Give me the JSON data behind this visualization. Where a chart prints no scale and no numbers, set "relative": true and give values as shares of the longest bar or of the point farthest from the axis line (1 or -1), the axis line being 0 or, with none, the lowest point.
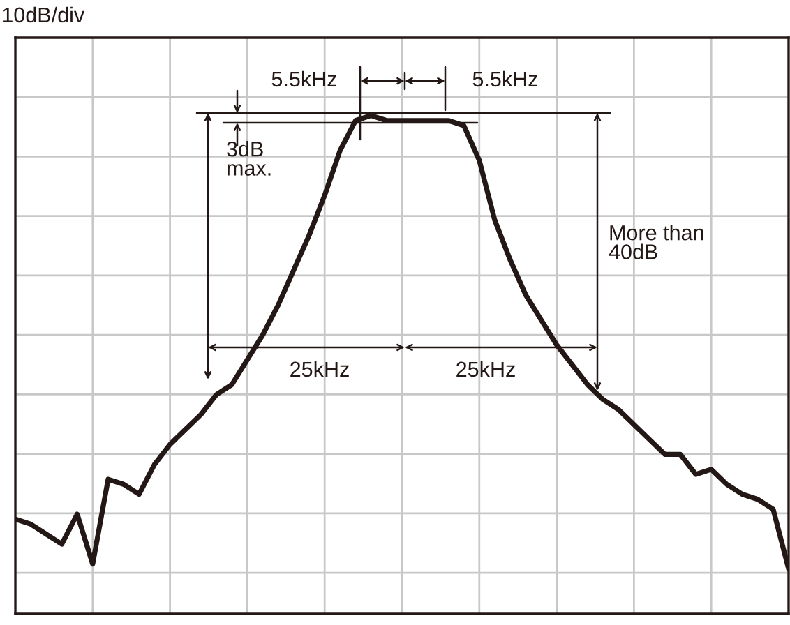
{
  "chart_data": {
    "type": "line",
    "relative": true,
    "grid": true,
    "tick_labels": false,
    "categories": [
      null,
      null,
      null,
      null,
      null,
      null,
      null,
      null,
      null,
      null,
      null,
      null,
      null,
      null,
      null,
      null,
      null,
      null,
      null,
      null,
      null,
      null,
      null,
      null,
      null,
      null,
      null,
      null,
      null,
      null,
      null,
      null,
      null,
      null,
      null,
      null,
      null,
      null,
      null,
      null,
      null,
      null,
      null,
      null,
      null,
      null,
      null,
      null,
      null,
      null,
      null
    ],
    "series": [
      {
        "color": "#231815",
        "values": [
          0.19,
          0.18,
          0.16,
          0.14,
          0.2,
          0.1,
          0.27,
          0.26,
          0.24,
          0.3,
          0.34,
          0.37,
          0.4,
          0.44,
          0.46,
          0.51,
          0.56,
          0.62,
          0.69,
          0.76,
          0.84,
          0.93,
          0.99,
          1.0,
          0.99,
          0.99,
          0.99,
          0.99,
          0.99,
          0.98,
          0.91,
          0.79,
          0.71,
          0.64,
          0.59,
          0.54,
          0.5,
          0.46,
          0.43,
          0.41,
          0.38,
          0.35,
          0.32,
          0.32,
          0.28,
          0.29,
          0.26,
          0.24,
          0.23,
          0.21,
          0.09
        ]
      }
    ],
    "annotations": [
      "10dB/div",
      "5.5kHz",
      "5.5kHz",
      "3dB\nmax.",
      "More than\n40dB",
      "25kHz",
      "25kHz"
    ]
  }
}
